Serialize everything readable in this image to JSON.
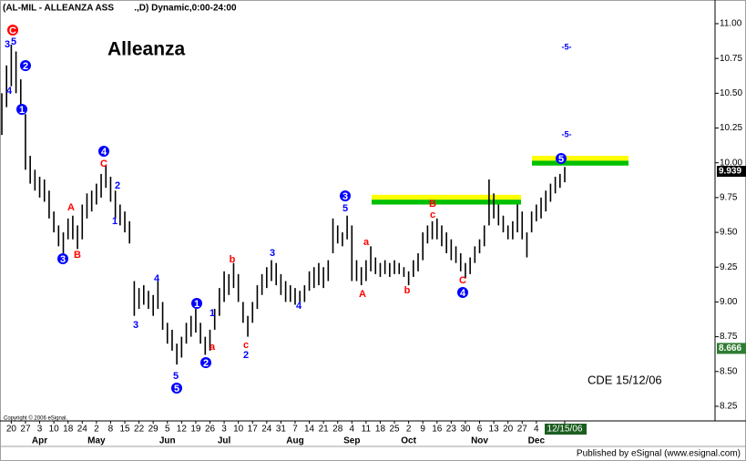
{
  "chart_data": {
    "type": "hlbar",
    "title": "(AL-MIL - ALLEANZA ASS        .,D) Dynamic,0:00-24:00",
    "subtitle": "Alleanza",
    "note": "CDE  15/12/06",
    "copyright": "Copyright © 2006 eSignal.",
    "publisher": "Published by eSignal (www.esignal.com)",
    "color": "#000000",
    "ylim": [
      8.145,
      11.17
    ],
    "yticks": [
      {
        "value": 11,
        "label": "11.00"
      },
      {
        "value": 10.75,
        "label": "10.75"
      },
      {
        "value": 10.5,
        "label": "10.50"
      },
      {
        "value": 10.25,
        "label": "10.25"
      },
      {
        "value": 10,
        "label": "10.00"
      },
      {
        "value": 9.75,
        "label": "9.75"
      },
      {
        "value": 9.5,
        "label": "9.50"
      },
      {
        "value": 9.25,
        "label": "9.25"
      },
      {
        "value": 9,
        "label": "9.00"
      },
      {
        "value": 8.75,
        "label": "8.75"
      },
      {
        "value": 8.5,
        "label": "8.50"
      },
      {
        "value": 8.25,
        "label": "8.25"
      }
    ],
    "price_tags": [
      {
        "value": 9.939,
        "label": "9.939",
        "color": "#000000"
      },
      {
        "value": 8.666,
        "label": "8.666",
        "color": "#2e7d32"
      }
    ],
    "months": [
      "Apr",
      "May",
      "Jun",
      "Jul",
      "Aug",
      "Sep",
      "Oct",
      "Nov",
      "Dec"
    ],
    "categories": [
      null,
      null,
      "20",
      null,
      null,
      "27",
      null,
      null,
      "3",
      null,
      null,
      "10",
      null,
      null,
      "18",
      null,
      null,
      "24",
      null,
      null,
      "2",
      null,
      null,
      "8",
      null,
      null,
      "15",
      null,
      null,
      "22",
      null,
      null,
      "29",
      null,
      null,
      "5",
      null,
      null,
      "12",
      null,
      null,
      "19",
      null,
      null,
      "26",
      null,
      null,
      "3",
      null,
      null,
      "10",
      null,
      null,
      "17",
      null,
      null,
      "24",
      null,
      null,
      "31",
      null,
      null,
      "7",
      null,
      null,
      "14",
      null,
      null,
      "21",
      null,
      null,
      "28",
      null,
      null,
      "4",
      null,
      null,
      "11",
      null,
      null,
      "18",
      null,
      null,
      "25",
      null,
      null,
      "2",
      null,
      null,
      "9",
      null,
      null,
      "16",
      null,
      null,
      "23",
      null,
      null,
      "30",
      null,
      null,
      "6",
      null,
      null,
      "13",
      null,
      null,
      "20",
      null,
      null,
      "27",
      null,
      null,
      "4",
      null,
      null,
      null,
      null,
      null,
      "12/15/06"
    ],
    "high": [
      10.5,
      10.7,
      10.85,
      10.8,
      10.6,
      10.35,
      10.05,
      9.95,
      9.9,
      9.88,
      9.8,
      9.65,
      9.55,
      9.5,
      9.6,
      9.62,
      9.55,
      9.7,
      9.78,
      9.8,
      9.85,
      9.92,
      9.98,
      9.9,
      9.8,
      9.7,
      9.65,
      9.58,
      9.15,
      9.1,
      9.12,
      9.08,
      9.05,
      9.15,
      9.0,
      8.85,
      8.8,
      8.7,
      8.75,
      8.85,
      8.9,
      8.95,
      8.85,
      8.75,
      8.8,
      8.95,
      9.1,
      9.22,
      9.2,
      9.28,
      9.2,
      9.0,
      8.9,
      9.0,
      9.12,
      9.2,
      9.25,
      9.3,
      9.28,
      9.2,
      9.15,
      9.12,
      9.1,
      9.08,
      9.12,
      9.22,
      9.25,
      9.28,
      9.25,
      9.3,
      9.6,
      9.55,
      9.5,
      9.62,
      9.55,
      9.3,
      9.25,
      9.3,
      9.4,
      9.32,
      9.28,
      9.3,
      9.28,
      9.3,
      9.28,
      9.25,
      9.22,
      9.3,
      9.35,
      9.5,
      9.55,
      9.58,
      9.6,
      9.55,
      9.5,
      9.45,
      9.4,
      9.35,
      9.28,
      9.32,
      9.4,
      9.45,
      9.55,
      9.88,
      9.78,
      9.7,
      9.62,
      9.55,
      9.58,
      9.7,
      9.65,
      9.5,
      9.65,
      9.7,
      9.75,
      9.8,
      9.85,
      9.9,
      9.92,
      9.97
    ],
    "low": [
      10.2,
      10.4,
      10.55,
      10.5,
      10.35,
      9.95,
      9.85,
      9.8,
      9.75,
      9.72,
      9.6,
      9.5,
      9.4,
      9.35,
      9.45,
      9.45,
      9.38,
      9.45,
      9.6,
      9.65,
      9.7,
      9.75,
      9.82,
      9.72,
      9.6,
      9.55,
      9.5,
      9.42,
      8.9,
      8.95,
      8.98,
      8.95,
      8.9,
      8.95,
      8.8,
      8.7,
      8.65,
      8.55,
      8.6,
      8.7,
      8.75,
      8.78,
      8.7,
      8.62,
      8.65,
      8.8,
      8.9,
      9.0,
      9.05,
      9.1,
      9.0,
      8.85,
      8.75,
      8.85,
      8.95,
      9.05,
      9.1,
      9.15,
      9.12,
      9.05,
      9.0,
      9.0,
      8.98,
      9.0,
      9.0,
      9.08,
      9.1,
      9.12,
      9.1,
      9.15,
      9.35,
      9.42,
      9.4,
      9.45,
      9.15,
      9.15,
      9.12,
      9.15,
      9.22,
      9.2,
      9.18,
      9.2,
      9.18,
      9.2,
      9.2,
      9.18,
      9.12,
      9.18,
      9.22,
      9.3,
      9.42,
      9.45,
      9.45,
      9.4,
      9.35,
      9.3,
      9.28,
      9.22,
      9.17,
      9.2,
      9.28,
      9.35,
      9.4,
      9.55,
      9.6,
      9.55,
      9.5,
      9.45,
      9.45,
      9.5,
      9.45,
      9.32,
      9.5,
      9.58,
      9.6,
      9.65,
      9.72,
      9.78,
      9.82,
      9.86
    ],
    "zones": [
      {
        "top": 9.77,
        "bottom": 9.7
      },
      {
        "top": 10.05,
        "bottom": 9.98
      }
    ],
    "annotations": [
      {
        "text": "3",
        "color": "#0000ff",
        "circled": false
      },
      {
        "text": "5",
        "color": "#0000ff",
        "circled": false
      },
      {
        "text": "C",
        "color": "#ff0000",
        "circled": true
      },
      {
        "text": "2",
        "color": "#0000ff",
        "circled": true
      },
      {
        "text": "4",
        "color": "#0000ff",
        "circled": false
      },
      {
        "text": "1",
        "color": "#0000ff",
        "circled": true
      },
      {
        "text": "A",
        "color": "#ff0000",
        "circled": false
      },
      {
        "text": "3",
        "color": "#0000ff",
        "circled": true
      },
      {
        "text": "B",
        "color": "#ff0000",
        "circled": false
      },
      {
        "text": "4",
        "color": "#0000ff",
        "circled": true
      },
      {
        "text": "C",
        "color": "#ff0000",
        "circled": false
      },
      {
        "text": "2",
        "color": "#0000ff",
        "circled": false
      },
      {
        "text": "1",
        "color": "#0000ff",
        "circled": false
      },
      {
        "text": "4",
        "color": "#0000ff",
        "circled": false
      },
      {
        "text": "3",
        "color": "#0000ff",
        "circled": false
      },
      {
        "text": "1",
        "color": "#0000ff",
        "circled": true
      },
      {
        "text": "a",
        "color": "#ff0000",
        "circled": false
      },
      {
        "text": "5",
        "color": "#0000ff",
        "circled": false
      },
      {
        "text": "5",
        "color": "#0000ff",
        "circled": true
      },
      {
        "text": "2",
        "color": "#0000ff",
        "circled": true
      },
      {
        "text": "1",
        "color": "#0000ff",
        "circled": false
      },
      {
        "text": "b",
        "color": "#ff0000",
        "circled": false
      },
      {
        "text": "c",
        "color": "#ff0000",
        "circled": false
      },
      {
        "text": "2",
        "color": "#0000ff",
        "circled": false
      },
      {
        "text": "3",
        "color": "#0000ff",
        "circled": false
      },
      {
        "text": "4",
        "color": "#0000ff",
        "circled": false
      },
      {
        "text": "3",
        "color": "#0000ff",
        "circled": true
      },
      {
        "text": "5",
        "color": "#0000ff",
        "circled": false
      },
      {
        "text": "a",
        "color": "#ff0000",
        "circled": false
      },
      {
        "text": "A",
        "color": "#ff0000",
        "circled": false
      },
      {
        "text": "b",
        "color": "#ff0000",
        "circled": false
      },
      {
        "text": "B",
        "color": "#ff0000",
        "circled": false
      },
      {
        "text": "c",
        "color": "#ff0000",
        "circled": false
      },
      {
        "text": "C",
        "color": "#ff0000",
        "circled": false
      },
      {
        "text": "4",
        "color": "#0000ff",
        "circled": true
      },
      {
        "text": "5",
        "color": "#0000ff",
        "circled": true
      },
      {
        "text": "-5-",
        "color": "#0000ff",
        "circled": false
      },
      {
        "text": "-5-",
        "color": "#0000ff",
        "circled": false
      }
    ]
  }
}
